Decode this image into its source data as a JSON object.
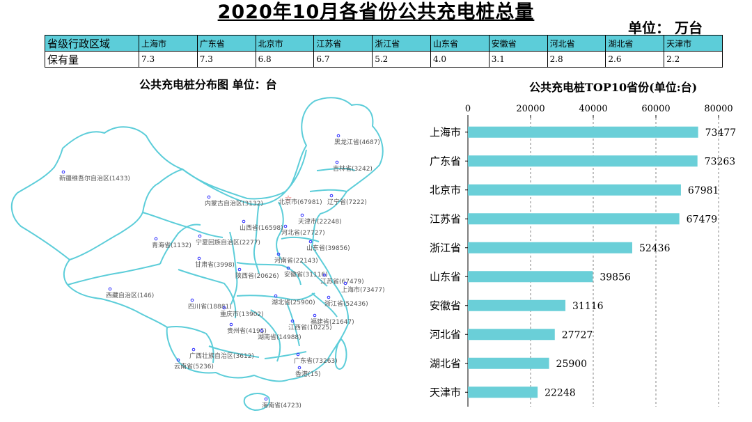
{
  "header": {
    "title": "2020年10月各省份公共充电桩总量",
    "unit": "单位：  万台"
  },
  "summary_table": {
    "row_labels": [
      "省级行政区域",
      "保有量"
    ],
    "provinces": [
      "上海市",
      "广东省",
      "北京市",
      "江苏省",
      "浙江省",
      "山东省",
      "安徽省",
      "河北省",
      "湖北省",
      "天津市"
    ],
    "values": [
      "7.3",
      "7.3",
      "6.8",
      "6.7",
      "5.2",
      "4.0",
      "3.1",
      "2.8",
      "2.6",
      "2.2"
    ]
  },
  "map": {
    "title": "公共充电桩分布图   单位：台",
    "line_color": "#5ccdd9",
    "dot_color": "#2a2aff",
    "star_color": "#e03030",
    "labels": [
      {
        "text": "黑龙江省(4687)",
        "marker": "dot"
      },
      {
        "text": "吉林省(3242)",
        "marker": "dot"
      },
      {
        "text": "辽宁省(7222)",
        "marker": "dot"
      },
      {
        "text": "新疆维吾尔自治区(1433)",
        "marker": "dot"
      },
      {
        "text": "内蒙古自治区(3132)",
        "marker": "dot"
      },
      {
        "text": "北京市(67981)",
        "marker": "star"
      },
      {
        "text": "天津市(22248)",
        "marker": "dot"
      },
      {
        "text": "山西省(16598)",
        "marker": "dot"
      },
      {
        "text": "河北省(27727)",
        "marker": "dot"
      },
      {
        "text": "宁夏回族自治区(2277)",
        "marker": "dot"
      },
      {
        "text": "青海省(1132)",
        "marker": "dot"
      },
      {
        "text": "山东省(39856)",
        "marker": "dot"
      },
      {
        "text": "河南省(22143)",
        "marker": "dot"
      },
      {
        "text": "甘肃省(3998)",
        "marker": "dot"
      },
      {
        "text": "陕西省(20626)",
        "marker": "dot"
      },
      {
        "text": "安徽省(31116)",
        "marker": "dot"
      },
      {
        "text": "江苏省(67479)",
        "marker": "dot"
      },
      {
        "text": "上海市(73477)",
        "marker": "dot"
      },
      {
        "text": "西藏自治区(146)",
        "marker": "dot"
      },
      {
        "text": "四川省(18881)",
        "marker": "dot"
      },
      {
        "text": "湖北省(25900)",
        "marker": "dot"
      },
      {
        "text": "浙江省(52436)",
        "marker": "dot"
      },
      {
        "text": "重庆市(13902)",
        "marker": "dot"
      },
      {
        "text": "福建省(21647)",
        "marker": "dot"
      },
      {
        "text": "江西省(10225)",
        "marker": "dot"
      },
      {
        "text": "贵州省(4195)",
        "marker": "dot"
      },
      {
        "text": "湖南省(14988)",
        "marker": "dot"
      },
      {
        "text": "广西壮族自治区(3612)",
        "marker": "dot"
      },
      {
        "text": "广东省(73263)",
        "marker": "dot"
      },
      {
        "text": "云南省(5236)",
        "marker": "dot"
      },
      {
        "text": "香港(15)",
        "marker": "dot"
      },
      {
        "text": "海南省(4723)",
        "marker": "dot"
      }
    ]
  },
  "chart_data": {
    "type": "bar",
    "orientation": "horizontal",
    "title": "公共充电桩TOP10省份(单位:台)",
    "categories": [
      "上海市",
      "广东省",
      "北京市",
      "江苏省",
      "浙江省",
      "山东省",
      "安徽省",
      "河北省",
      "湖北省",
      "天津市"
    ],
    "values": [
      73477,
      73263,
      67981,
      67479,
      52436,
      39856,
      31116,
      27727,
      25900,
      22248
    ],
    "xlim": [
      0,
      80000
    ],
    "xticks": [
      0,
      20000,
      40000,
      60000,
      80000
    ],
    "axis_position": "top",
    "grid": "vertical dashed",
    "bar_color": "#6acfd8"
  }
}
